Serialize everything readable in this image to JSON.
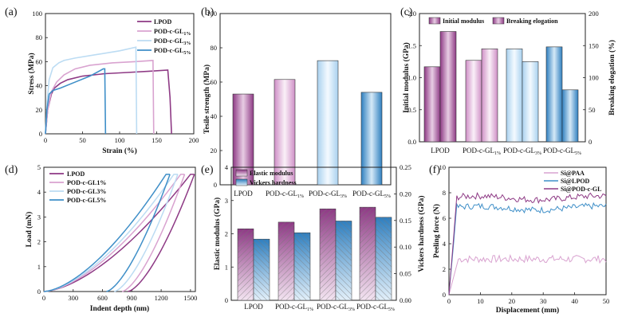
{
  "chart_data": [
    {
      "panel": "(a)",
      "type": "line",
      "xlabel": "Strain (%)",
      "ylabel": "Stress (MPa)",
      "xlim": [
        0,
        200
      ],
      "ylim": [
        0,
        100
      ],
      "xticks": [
        "0",
        "50",
        "100",
        "150",
        "200"
      ],
      "yticks": [
        "0",
        "20",
        "40",
        "60",
        "80",
        "100"
      ],
      "series": [
        {
          "name": "LPOD",
          "color": "#8e3a85",
          "x": [
            0,
            3,
            8,
            12,
            20,
            30,
            50,
            80,
            110,
            140,
            165,
            168,
            170
          ],
          "y": [
            0,
            20,
            33,
            38,
            42,
            45,
            48,
            50,
            51,
            52,
            53,
            30,
            0
          ]
        },
        {
          "name": "POD-c-GL1%",
          "color": "#d9a3d0",
          "x": [
            0,
            3,
            8,
            15,
            25,
            40,
            60,
            90,
            120,
            145,
            146
          ],
          "y": [
            0,
            20,
            35,
            43,
            49,
            54,
            57,
            59,
            60,
            61,
            0
          ]
        },
        {
          "name": "POD-c-GL3%",
          "color": "#bcdcf3",
          "x": [
            0,
            2,
            5,
            10,
            18,
            25,
            40,
            70,
            100,
            122,
            123
          ],
          "y": [
            0,
            25,
            45,
            55,
            59,
            61,
            63,
            66,
            69,
            72,
            0
          ]
        },
        {
          "name": "POD-c-GL5%",
          "color": "#3f8fc8",
          "x": [
            0,
            2,
            5,
            10,
            20,
            40,
            60,
            78,
            80,
            81
          ],
          "y": [
            0,
            20,
            33,
            36,
            38,
            43,
            48,
            54,
            54,
            0
          ]
        }
      ],
      "legend": [
        "LPOD",
        "POD-c-GL1%",
        "POD-c-GL3%",
        "POD-c-GL5%"
      ]
    },
    {
      "panel": "(b)",
      "type": "bar",
      "ylabel": "Tesile strength (MPa)",
      "ylim": [
        0,
        100
      ],
      "yticks": [
        "0",
        "20",
        "40",
        "60",
        "80",
        "100"
      ],
      "categories": [
        "LPOD",
        "POD-c-GL1%",
        "POD-c-GL3%",
        "POD-c-GL5%"
      ],
      "values": [
        53,
        61.5,
        72.5,
        54
      ]
    },
    {
      "panel": "(c)",
      "type": "bar",
      "ylabel": "Initial modulus (GPa)",
      "y2label": "Breaking elogation (%)",
      "ylim": [
        0,
        2.0
      ],
      "y2lim": [
        0,
        200
      ],
      "yticks": [
        "0.0",
        "0.5",
        "1.0",
        "1.5",
        "2.0"
      ],
      "y2ticks": [
        "0",
        "50",
        "100",
        "150",
        "200"
      ],
      "categories": [
        "LPOD",
        "POD-c-GL1%",
        "POD-c-GL3%",
        "POD-c-GL5%"
      ],
      "series": [
        {
          "name": "Initial modulus",
          "values": [
            1.17,
            1.27,
            1.45,
            1.48
          ]
        },
        {
          "name": "Breaking elogation",
          "values": [
            172,
            145,
            125,
            81
          ]
        }
      ]
    },
    {
      "panel": "(d)",
      "type": "line",
      "xlabel": "Indent depth (nm)",
      "ylabel": "Load (mN)",
      "xlim": [
        0,
        1500
      ],
      "ylim": [
        0,
        5
      ],
      "xticks": [
        "0",
        "300",
        "600",
        "900",
        "1200",
        "1500"
      ],
      "yticks": [
        "0",
        "1",
        "2",
        "3",
        "4",
        "5"
      ],
      "legend": [
        "LPOD",
        "POD-c-GL1%",
        "POD-c-GL3%",
        "POD-c-GL5%"
      ],
      "series": [
        {
          "name": "LPOD",
          "color": "#8e3a85",
          "max_depth": 1500,
          "residual_depth": 860
        },
        {
          "name": "POD-c-GL1%",
          "color": "#d9a3d0",
          "max_depth": 1400,
          "residual_depth": 800
        },
        {
          "name": "POD-c-GL3%",
          "color": "#bcdcf3",
          "max_depth": 1330,
          "residual_depth": 720
        },
        {
          "name": "POD-c-GL5%",
          "color": "#3f8fc8",
          "max_depth": 1250,
          "residual_depth": 640
        }
      ]
    },
    {
      "panel": "(e)",
      "type": "bar",
      "ylabel": "Elastic modulus (GPa)",
      "y2label": "Vickers hardness (GPa)",
      "ylim": [
        0,
        4
      ],
      "y2lim": [
        0,
        0.25
      ],
      "yticks": [
        "0",
        "1",
        "2",
        "3",
        "4"
      ],
      "y2ticks": [
        "0.00",
        "0.05",
        "0.10",
        "0.15",
        "0.20",
        "0.25"
      ],
      "categories": [
        "LPOD",
        "POD-c-GL1%",
        "POD-c-GL3%",
        "POD-c-GL5%"
      ],
      "series": [
        {
          "name": "Elastic modulus",
          "values": [
            2.15,
            2.35,
            2.75,
            2.8
          ]
        },
        {
          "name": "Vickers hardness",
          "values": [
            0.115,
            0.127,
            0.149,
            0.156
          ]
        }
      ]
    },
    {
      "panel": "(f)",
      "type": "line",
      "xlabel": "Displacement (mm)",
      "ylabel": "Peeling force (N)",
      "xlim": [
        0,
        50
      ],
      "ylim": [
        0,
        10
      ],
      "xticks": [
        "0",
        "10",
        "20",
        "30",
        "40",
        "50"
      ],
      "yticks": [
        "0",
        "2",
        "4",
        "6",
        "8",
        "10"
      ],
      "legend": [
        "Si@PAA",
        "Si@LPOD",
        "Si@POD-c-GL"
      ],
      "series": [
        {
          "name": "Si@PAA",
          "color": "#d9a3d0",
          "plateau": 2.8
        },
        {
          "name": "Si@LPOD",
          "color": "#3f8fc8",
          "plateau": 6.8
        },
        {
          "name": "Si@POD-c-GL",
          "color": "#8e3a85",
          "plateau": 7.6
        }
      ]
    }
  ]
}
